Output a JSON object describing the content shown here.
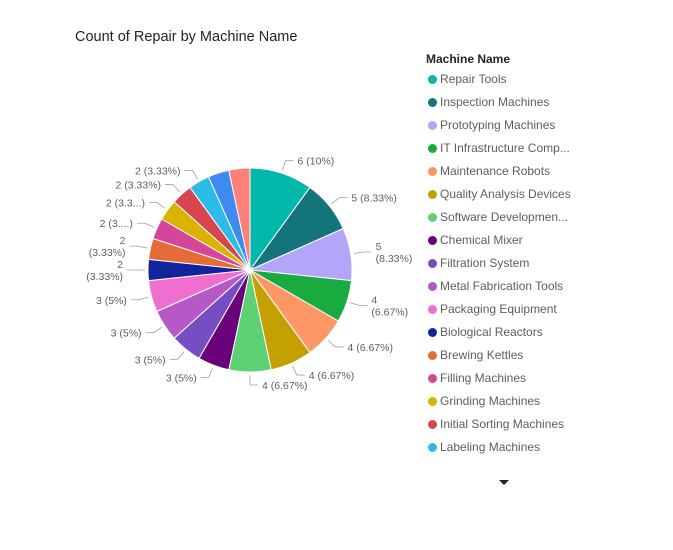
{
  "chart_data": {
    "type": "pie",
    "title": "Count of Repair by Machine Name",
    "legend_title": "Machine Name",
    "legend_position": "right",
    "slices": [
      {
        "name": "Repair Tools",
        "value": 6,
        "label": "6 (10%)",
        "color": "#01B8AA"
      },
      {
        "name": "Inspection Machines",
        "value": 5,
        "label": "5 (8.33%)",
        "color": "#13747A"
      },
      {
        "name": "Prototyping Machines",
        "value": 5,
        "label_lines": [
          "5",
          "(8.33%)"
        ],
        "color": "#B3A6FA"
      },
      {
        "name": "IT Infrastructure Comp...",
        "value": 4,
        "label_lines": [
          "4",
          "(6.67%)"
        ],
        "color": "#1AAB40"
      },
      {
        "name": "Maintenance Robots",
        "value": 4,
        "label": "4 (6.67%)",
        "color": "#FE9666"
      },
      {
        "name": "Quality Analysis Devices",
        "value": 4,
        "label": "4 (6.67%)",
        "color": "#C4A000"
      },
      {
        "name": "Software Developmen...",
        "value": 4,
        "label": "4 (6.67%)",
        "color": "#5FD175"
      },
      {
        "name": "Chemical Mixer",
        "value": 3,
        "label": "3 (5%)",
        "color": "#6B007B"
      },
      {
        "name": "Filtration System",
        "value": 3,
        "label": "3 (5%)",
        "color": "#744EC2"
      },
      {
        "name": "Metal Fabrication Tools",
        "value": 3,
        "label": "3 (5%)",
        "color": "#B659C6"
      },
      {
        "name": "Packaging Equipment",
        "value": 3,
        "label": "3 (5%)",
        "color": "#F06ECF"
      },
      {
        "name": "Biological Reactors",
        "value": 2,
        "label_lines": [
          "2",
          "(3.33%)"
        ],
        "color": "#12239E"
      },
      {
        "name": "Brewing Kettles",
        "value": 2,
        "label_lines": [
          "2",
          "(3.33%)"
        ],
        "color": "#E66C37"
      },
      {
        "name": "Filling Machines",
        "value": 2,
        "label": "2 (3....)",
        "color": "#D64597"
      },
      {
        "name": "Grinding Machines",
        "value": 2,
        "label": "2 (3.3...)",
        "color": "#D9B300"
      },
      {
        "name": "Initial Sorting Machines",
        "value": 2,
        "label": "2 (3.33%)",
        "color": "#D64550"
      },
      {
        "name": "Labeling Machines",
        "value": 2,
        "label": "2 (3.33%)",
        "color": "#2ABBE7"
      },
      {
        "name": "",
        "value": 2,
        "color": "#3F8AEF"
      },
      {
        "name": "",
        "value": 2,
        "color": "#FF7F79"
      }
    ]
  },
  "legend_items": [
    {
      "label": "Repair Tools",
      "color": "#01B8AA"
    },
    {
      "label": "Inspection Machines",
      "color": "#13747A"
    },
    {
      "label": "Prototyping Machines",
      "color": "#B3A6FA"
    },
    {
      "label": "IT Infrastructure Comp...",
      "color": "#1AAB40"
    },
    {
      "label": "Maintenance Robots",
      "color": "#FE9666"
    },
    {
      "label": "Quality Analysis Devices",
      "color": "#C4A000"
    },
    {
      "label": "Software Developmen...",
      "color": "#5FD175"
    },
    {
      "label": "Chemical Mixer",
      "color": "#6B007B"
    },
    {
      "label": "Filtration System",
      "color": "#744EC2"
    },
    {
      "label": "Metal Fabrication Tools",
      "color": "#B659C6"
    },
    {
      "label": "Packaging Equipment",
      "color": "#F06ECF"
    },
    {
      "label": "Biological Reactors",
      "color": "#12239E"
    },
    {
      "label": "Brewing Kettles",
      "color": "#E66C37"
    },
    {
      "label": "Filling Machines",
      "color": "#D64597"
    },
    {
      "label": "Grinding Machines",
      "color": "#D9B300"
    },
    {
      "label": "Initial Sorting Machines",
      "color": "#D64550"
    },
    {
      "label": "Labeling Machines",
      "color": "#2ABBE7"
    }
  ],
  "legend_scroll_icon": "caret-down-icon"
}
